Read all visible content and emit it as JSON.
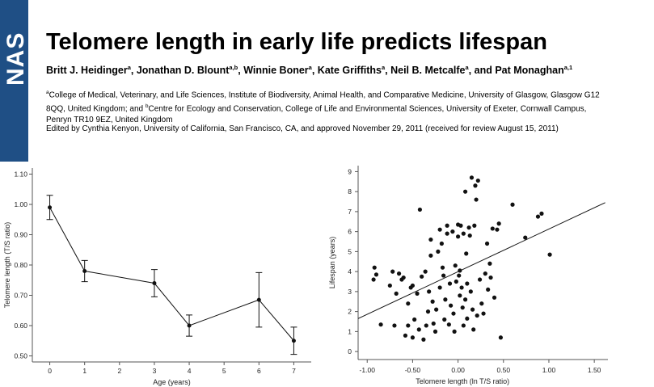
{
  "logo": {
    "text": "NAS",
    "color": "#1f4f85"
  },
  "title": "Telomere length in early life predicts lifespan",
  "authors": [
    {
      "name": "Britt J. Heidinger",
      "sup": "a",
      "sep": ", "
    },
    {
      "name": "Jonathan D. Blount",
      "sup": "a,b",
      "sep": ", "
    },
    {
      "name": "Winnie Boner",
      "sup": "a",
      "sep": ", "
    },
    {
      "name": "Kate Griffiths",
      "sup": "a",
      "sep": ", "
    },
    {
      "name": "Neil B. Metcalfe",
      "sup": "a",
      "sep": ", and "
    },
    {
      "name": "Pat Monaghan",
      "sup": "a,1",
      "sep": ""
    }
  ],
  "affiliation": {
    "a_mark": "a",
    "a_text": "College of Medical, Veterinary, and Life Sciences, Institute of Biodiversity, Animal Health, and Comparative Medicine, University of Glasgow, Glasgow G12 8QQ, United Kingdom; and ",
    "b_mark": "b",
    "b_text": "Centre for Ecology and Conservation, College of Life and Environmental Sciences, University of Exeter, Cornwall Campus, Penryn TR10 9EZ, United Kingdom"
  },
  "edited": "Edited by Cynthia Kenyon, University of California, San Francisco, CA, and approved November 29, 2011 (received for review August 15, 2011)",
  "chart_data": [
    {
      "type": "line",
      "title": "",
      "xlabel": "Age (years)",
      "ylabel": "Telomere length (T/S ratio)",
      "xlim": [
        -0.5,
        7.5
      ],
      "ylim": [
        0.48,
        1.12
      ],
      "xticks": [
        0,
        1,
        2,
        3,
        4,
        5,
        6,
        7
      ],
      "yticks": [
        "0.50",
        "0.60",
        "0.70",
        "0.80",
        "0.90",
        "1.00",
        "1.10"
      ],
      "x": [
        0,
        1,
        3,
        4,
        6,
        7
      ],
      "y": [
        0.99,
        0.78,
        0.74,
        0.6,
        0.685,
        0.55
      ],
      "error": [
        0.04,
        0.035,
        0.045,
        0.035,
        0.09,
        0.045
      ],
      "grid": false
    },
    {
      "type": "scatter",
      "title": "",
      "xlabel": "Telomere length (ln T/S ratio)",
      "ylabel": "Lifespan (years)",
      "xlim": [
        -1.1,
        1.65
      ],
      "ylim": [
        -0.4,
        9.3
      ],
      "xticks": [
        "-1.00",
        "-0.50",
        "0.00",
        "0.50",
        "1.00",
        "1.50"
      ],
      "yticks": [
        0,
        1,
        2,
        3,
        4,
        5,
        6,
        7,
        8,
        9
      ],
      "trendline": {
        "x": [
          -1.1,
          1.62
        ],
        "y": [
          1.65,
          7.45
        ]
      },
      "points": [
        [
          -0.92,
          4.2
        ],
        [
          -0.9,
          3.85
        ],
        [
          -0.93,
          3.6
        ],
        [
          -0.85,
          1.35
        ],
        [
          -0.75,
          3.3
        ],
        [
          -0.72,
          4.0
        ],
        [
          -0.7,
          1.3
        ],
        [
          -0.68,
          2.9
        ],
        [
          -0.65,
          3.9
        ],
        [
          -0.62,
          3.6
        ],
        [
          -0.6,
          3.7
        ],
        [
          -0.58,
          0.8
        ],
        [
          -0.55,
          1.3
        ],
        [
          -0.55,
          2.4
        ],
        [
          -0.52,
          3.2
        ],
        [
          -0.5,
          3.3
        ],
        [
          -0.5,
          0.7
        ],
        [
          -0.48,
          1.6
        ],
        [
          -0.45,
          2.9
        ],
        [
          -0.43,
          1.1
        ],
        [
          -0.42,
          7.1
        ],
        [
          -0.4,
          3.75
        ],
        [
          -0.38,
          0.6
        ],
        [
          -0.36,
          4.0
        ],
        [
          -0.35,
          1.3
        ],
        [
          -0.33,
          2.0
        ],
        [
          -0.32,
          3.0
        ],
        [
          -0.3,
          4.8
        ],
        [
          -0.3,
          5.6
        ],
        [
          -0.28,
          2.5
        ],
        [
          -0.27,
          1.4
        ],
        [
          -0.25,
          1.0
        ],
        [
          -0.24,
          2.1
        ],
        [
          -0.22,
          5.0
        ],
        [
          -0.2,
          6.1
        ],
        [
          -0.2,
          3.2
        ],
        [
          -0.18,
          5.4
        ],
        [
          -0.17,
          4.2
        ],
        [
          -0.16,
          3.8
        ],
        [
          -0.15,
          1.6
        ],
        [
          -0.14,
          2.6
        ],
        [
          -0.12,
          5.9
        ],
        [
          -0.12,
          6.3
        ],
        [
          -0.1,
          1.35
        ],
        [
          -0.09,
          3.4
        ],
        [
          -0.08,
          2.3
        ],
        [
          -0.06,
          6.0
        ],
        [
          -0.05,
          1.9
        ],
        [
          -0.04,
          1.0
        ],
        [
          -0.03,
          4.3
        ],
        [
          -0.02,
          3.5
        ],
        [
          0.0,
          6.35
        ],
        [
          0.0,
          5.75
        ],
        [
          0.01,
          3.8
        ],
        [
          0.02,
          4.05
        ],
        [
          0.02,
          2.8
        ],
        [
          0.03,
          6.3
        ],
        [
          0.04,
          3.2
        ],
        [
          0.05,
          2.2
        ],
        [
          0.06,
          1.3
        ],
        [
          0.06,
          5.9
        ],
        [
          0.08,
          8.0
        ],
        [
          0.08,
          2.6
        ],
        [
          0.09,
          4.9
        ],
        [
          0.1,
          3.4
        ],
        [
          0.1,
          1.65
        ],
        [
          0.12,
          6.2
        ],
        [
          0.13,
          5.8
        ],
        [
          0.14,
          3.0
        ],
        [
          0.15,
          8.7
        ],
        [
          0.16,
          2.1
        ],
        [
          0.17,
          1.1
        ],
        [
          0.18,
          6.3
        ],
        [
          0.19,
          8.3
        ],
        [
          0.2,
          7.6
        ],
        [
          0.21,
          1.8
        ],
        [
          0.22,
          8.55
        ],
        [
          0.24,
          3.6
        ],
        [
          0.26,
          2.4
        ],
        [
          0.28,
          1.9
        ],
        [
          0.3,
          3.9
        ],
        [
          0.32,
          5.4
        ],
        [
          0.33,
          3.1
        ],
        [
          0.35,
          4.4
        ],
        [
          0.36,
          3.7
        ],
        [
          0.38,
          6.15
        ],
        [
          0.4,
          2.7
        ],
        [
          0.43,
          6.1
        ],
        [
          0.45,
          6.4
        ],
        [
          0.47,
          0.7
        ],
        [
          0.6,
          7.35
        ],
        [
          0.74,
          5.7
        ],
        [
          0.88,
          6.75
        ],
        [
          0.92,
          6.9
        ],
        [
          1.01,
          4.85
        ]
      ],
      "grid": false
    }
  ],
  "colors": {
    "ink": "#111111",
    "axis": "#555555"
  }
}
